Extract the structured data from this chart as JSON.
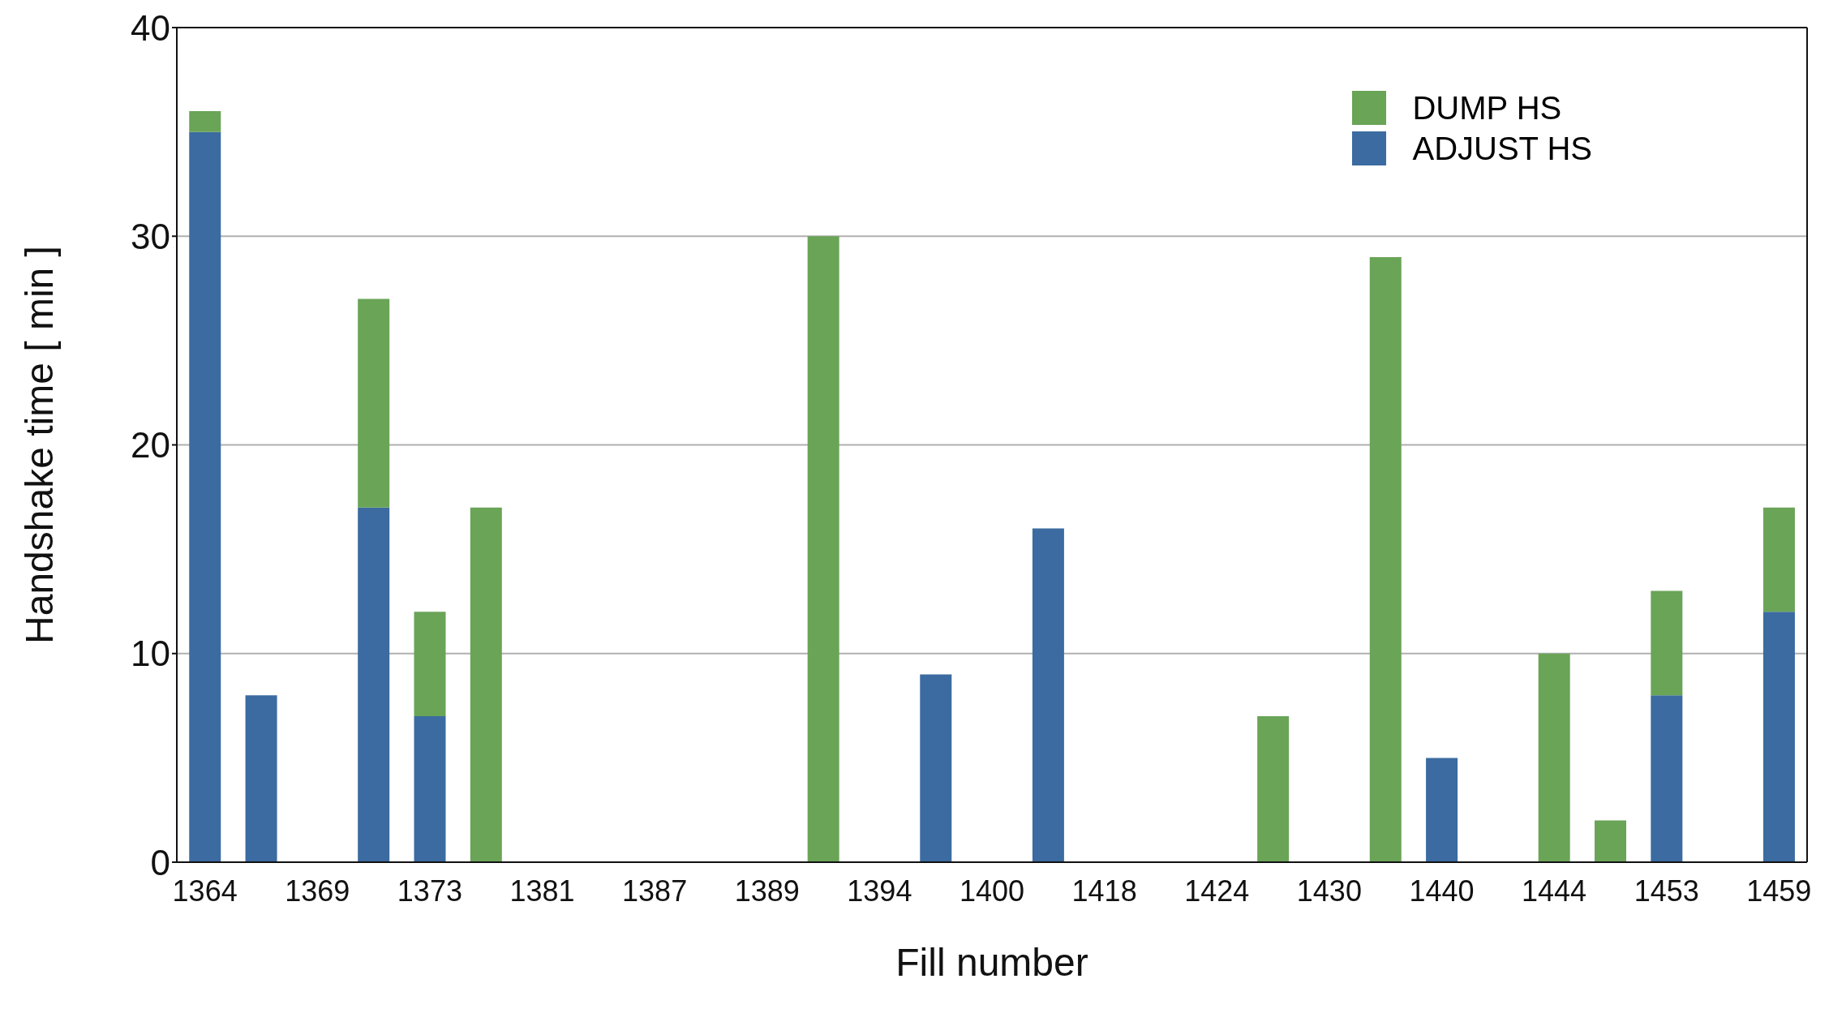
{
  "chart_data": {
    "type": "bar",
    "xlabel": "Fill number",
    "ylabel": "Handshake time [ min ]",
    "categories": [
      "1364",
      null,
      "1369",
      null,
      "1373",
      null,
      "1381",
      null,
      "1387",
      null,
      "1389",
      null,
      "1394",
      null,
      "1400",
      null,
      "1418",
      null,
      "1424",
      null,
      "1430",
      null,
      "1440",
      null,
      "1444",
      null,
      "1453",
      null,
      "1459"
    ],
    "series": [
      {
        "name": "ADJUST HS",
        "color": "#3b6ba0",
        "values": [
          35,
          8,
          null,
          17,
          7,
          null,
          null,
          null,
          null,
          null,
          null,
          null,
          null,
          9,
          null,
          16,
          null,
          null,
          null,
          null,
          null,
          null,
          5,
          null,
          null,
          null,
          8,
          null,
          12
        ]
      },
      {
        "name": "DUMP HS",
        "color": "#6aa457",
        "values": [
          1,
          null,
          null,
          10,
          5,
          17,
          null,
          null,
          null,
          null,
          null,
          30,
          null,
          null,
          null,
          null,
          null,
          null,
          null,
          7,
          null,
          29,
          null,
          null,
          10,
          2,
          5,
          null,
          5
        ]
      }
    ],
    "stacked": true,
    "ylim": [
      0,
      40
    ],
    "yticks": [
      0,
      10,
      20,
      30,
      40
    ],
    "grid": "y",
    "legend": "top right"
  }
}
